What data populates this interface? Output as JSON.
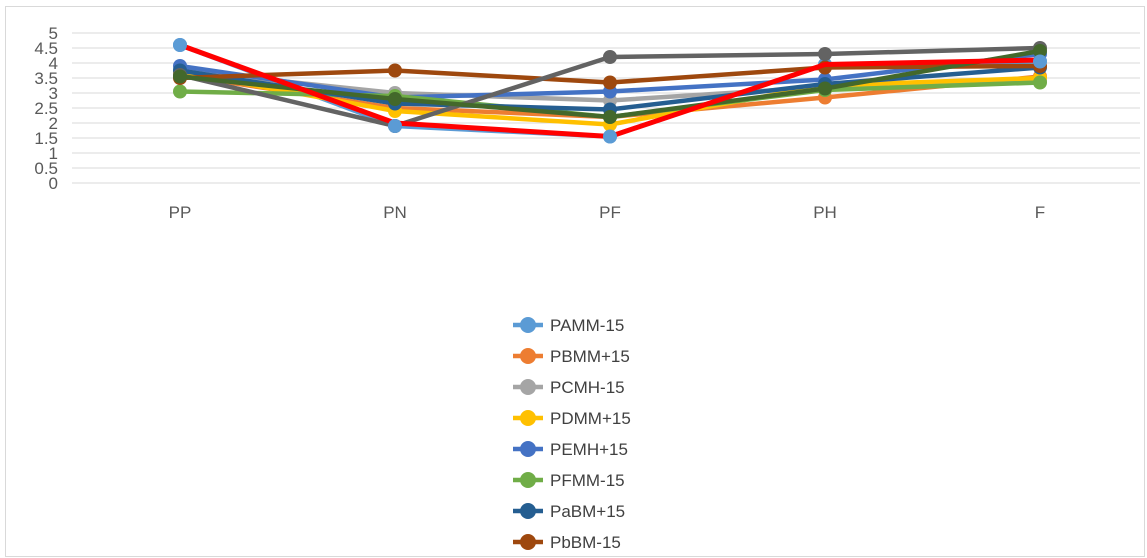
{
  "chart_data": {
    "type": "line",
    "title": "",
    "xlabel": "",
    "ylabel": "",
    "categories": [
      "PP",
      "PN",
      "PF",
      "PH",
      "F"
    ],
    "y_ticks": [
      "0",
      "0.5",
      "1",
      "1.5",
      "2",
      "2.5",
      "3",
      "3.5",
      "4",
      "4.5",
      "5"
    ],
    "ylim": [
      0,
      5
    ],
    "grid": true,
    "legend_position": "bottom",
    "series": [
      {
        "name": "PAMM-15",
        "color": "#5b9bd5",
        "values": [
          4.6,
          1.9,
          1.55,
          3.95,
          4.05
        ]
      },
      {
        "name": "PBMM+15",
        "color": "#ed7d31",
        "values": [
          3.6,
          2.5,
          2.2,
          2.85,
          3.55
        ]
      },
      {
        "name": "PCMH-15",
        "color": "#a5a5a5",
        "values": [
          3.75,
          3.0,
          2.75,
          3.2,
          3.4
        ]
      },
      {
        "name": "PDMM+15",
        "color": "#ffc000",
        "values": [
          3.7,
          2.4,
          1.95,
          3.25,
          3.5
        ]
      },
      {
        "name": "PEMH+15",
        "color": "#4472c4",
        "values": [
          3.9,
          2.85,
          3.05,
          3.45,
          4.3
        ]
      },
      {
        "name": "PFMM-15",
        "color": "#70ad47",
        "values": [
          3.05,
          2.9,
          2.2,
          3.1,
          3.35
        ]
      },
      {
        "name": "PaBM+15",
        "color": "#255e91",
        "values": [
          3.75,
          2.65,
          2.45,
          3.3,
          3.85
        ]
      },
      {
        "name": "PbBM-15",
        "color": "#9e480e",
        "values": [
          3.5,
          3.75,
          3.35,
          3.85,
          3.9
        ]
      },
      {
        "name": "",
        "color": "#636363",
        "values": [
          3.6,
          1.9,
          4.2,
          4.3,
          4.5
        ]
      },
      {
        "name": "",
        "color": "#43682b",
        "values": [
          3.55,
          2.8,
          2.2,
          3.15,
          4.4
        ]
      },
      {
        "name": "",
        "color": "#ff0000",
        "values": [
          4.6,
          2.0,
          1.55,
          3.95,
          4.1
        ]
      }
    ]
  }
}
